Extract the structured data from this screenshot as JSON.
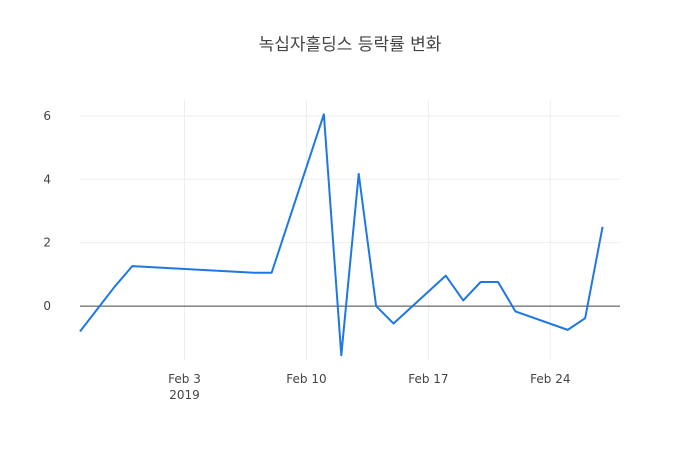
{
  "title": "녹십자홀딩스 등락률 변화",
  "colors": {
    "line": "#1f77e4",
    "grid": "#eeeeee",
    "zeroline": "#444444",
    "text": "#444444",
    "background": "#ffffff"
  },
  "chart_data": {
    "type": "line",
    "title": "녹십자홀딩스 등락률 변화",
    "xlabel": "",
    "ylabel": "",
    "xlim": [
      "2019-01-28",
      "2019-02-28"
    ],
    "ylim": [
      -1.7,
      6.5
    ],
    "grid": true,
    "zeroline": true,
    "x_ticks": [
      {
        "date": "2019-02-03",
        "label": "Feb 3",
        "sublabel": "2019"
      },
      {
        "date": "2019-02-10",
        "label": "Feb 10",
        "sublabel": ""
      },
      {
        "date": "2019-02-17",
        "label": "Feb 17",
        "sublabel": ""
      },
      {
        "date": "2019-02-24",
        "label": "Feb 24",
        "sublabel": ""
      }
    ],
    "y_ticks": [
      0,
      2,
      4,
      6
    ],
    "x": [
      "2019-01-28",
      "2019-01-30",
      "2019-01-31",
      "2019-02-07",
      "2019-02-08",
      "2019-02-11",
      "2019-02-12",
      "2019-02-13",
      "2019-02-14",
      "2019-02-15",
      "2019-02-18",
      "2019-02-19",
      "2019-02-20",
      "2019-02-21",
      "2019-02-22",
      "2019-02-25",
      "2019-02-26",
      "2019-02-27"
    ],
    "values": [
      -0.8,
      0.62,
      1.26,
      1.05,
      1.05,
      6.05,
      -1.55,
      4.17,
      0.0,
      -0.55,
      0.96,
      0.18,
      0.76,
      0.76,
      -0.17,
      -0.75,
      -0.38,
      2.5
    ]
  }
}
